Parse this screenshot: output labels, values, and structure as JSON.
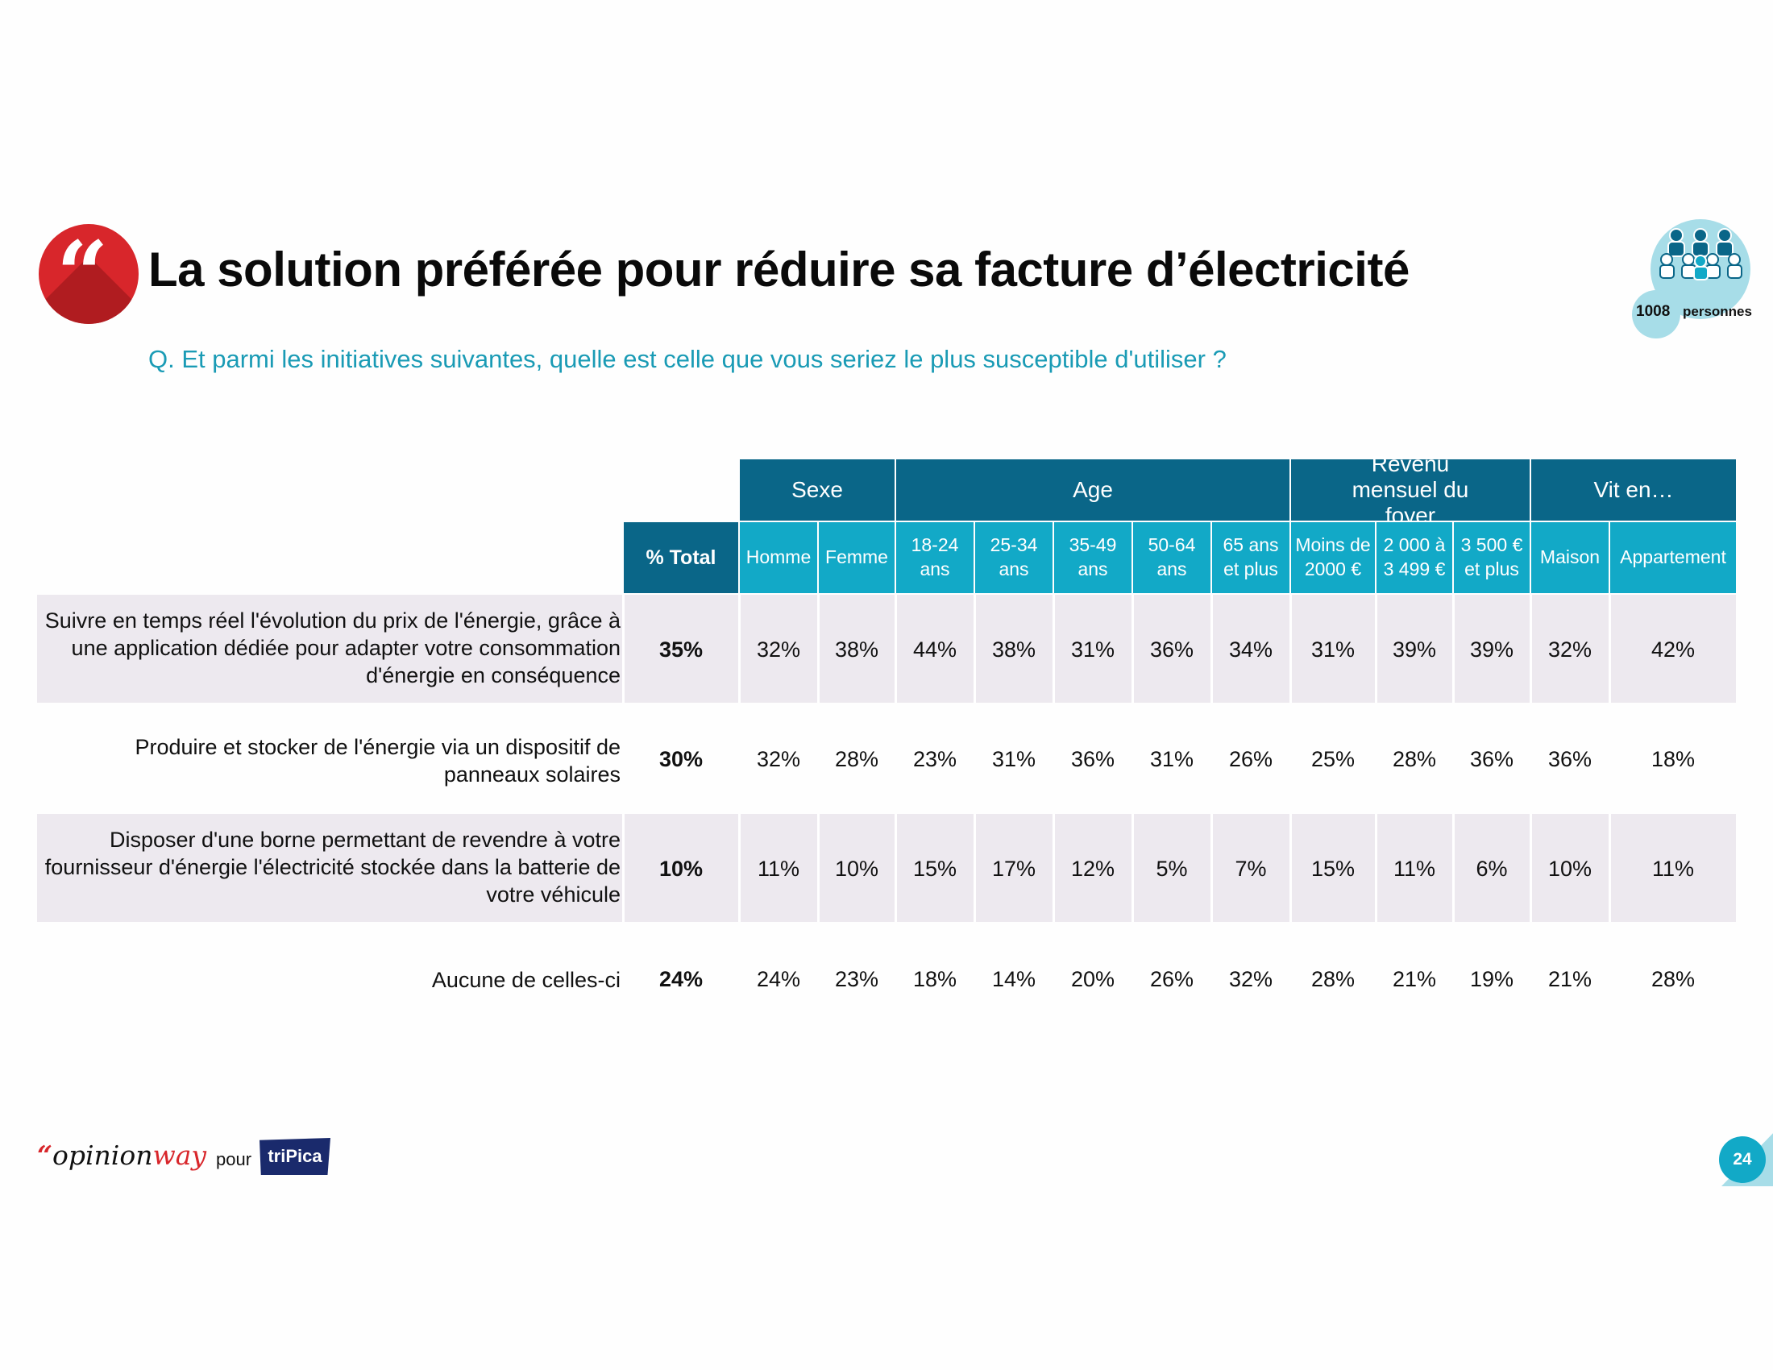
{
  "title": "La solution préférée pour réduire sa facture d’électricité",
  "question": "Q. Et parmi les initiatives suivantes, quelle est celle que vous seriez le plus susceptible d'utiliser ?",
  "sample": {
    "count": "1008",
    "label": "personnes"
  },
  "colors": {
    "dark_teal": "#0a6688",
    "teal": "#12a9c7",
    "red": "#d8262b",
    "row_shade": "#ede9ef"
  },
  "table": {
    "groups": [
      "Sexe",
      "Age",
      "Revenu mensuel du foyer",
      "Vit en…"
    ],
    "total_label": "% Total",
    "columns": [
      "Homme",
      "Femme",
      "18-24 ans",
      "25-34 ans",
      "35-49 ans",
      "50-64 ans",
      "65 ans et plus",
      "Moins de 2000 €",
      "2 000 à 3 499 €",
      "3 500 € et plus",
      "Maison",
      "Appartement"
    ],
    "rows": [
      {
        "label": "Suivre en temps réel l'évolution du prix de l'énergie, grâce à une application dédiée pour adapter votre consommation d'énergie en conséquence",
        "total": "35%",
        "values": [
          "32%",
          "38%",
          "44%",
          "38%",
          "31%",
          "36%",
          "34%",
          "31%",
          "39%",
          "39%",
          "32%",
          "42%"
        ]
      },
      {
        "label": "Produire et stocker de l'énergie via un dispositif de panneaux solaires",
        "total": "30%",
        "values": [
          "32%",
          "28%",
          "23%",
          "31%",
          "36%",
          "31%",
          "26%",
          "25%",
          "28%",
          "36%",
          "36%",
          "18%"
        ]
      },
      {
        "label": "Disposer d'une borne permettant de revendre à votre fournisseur d'énergie l'électricité stockée dans la batterie de votre véhicule",
        "total": "10%",
        "values": [
          "11%",
          "10%",
          "15%",
          "17%",
          "12%",
          "5%",
          "7%",
          "15%",
          "11%",
          "6%",
          "10%",
          "11%"
        ]
      },
      {
        "label": "Aucune de celles-ci",
        "total": "24%",
        "values": [
          "24%",
          "23%",
          "18%",
          "14%",
          "20%",
          "26%",
          "32%",
          "28%",
          "21%",
          "19%",
          "21%",
          "28%"
        ]
      }
    ]
  },
  "footer": {
    "brand_mark": "“",
    "brand_a": "opinion",
    "brand_b": "way",
    "pour": "pour",
    "client": "triPica",
    "page": "24"
  }
}
